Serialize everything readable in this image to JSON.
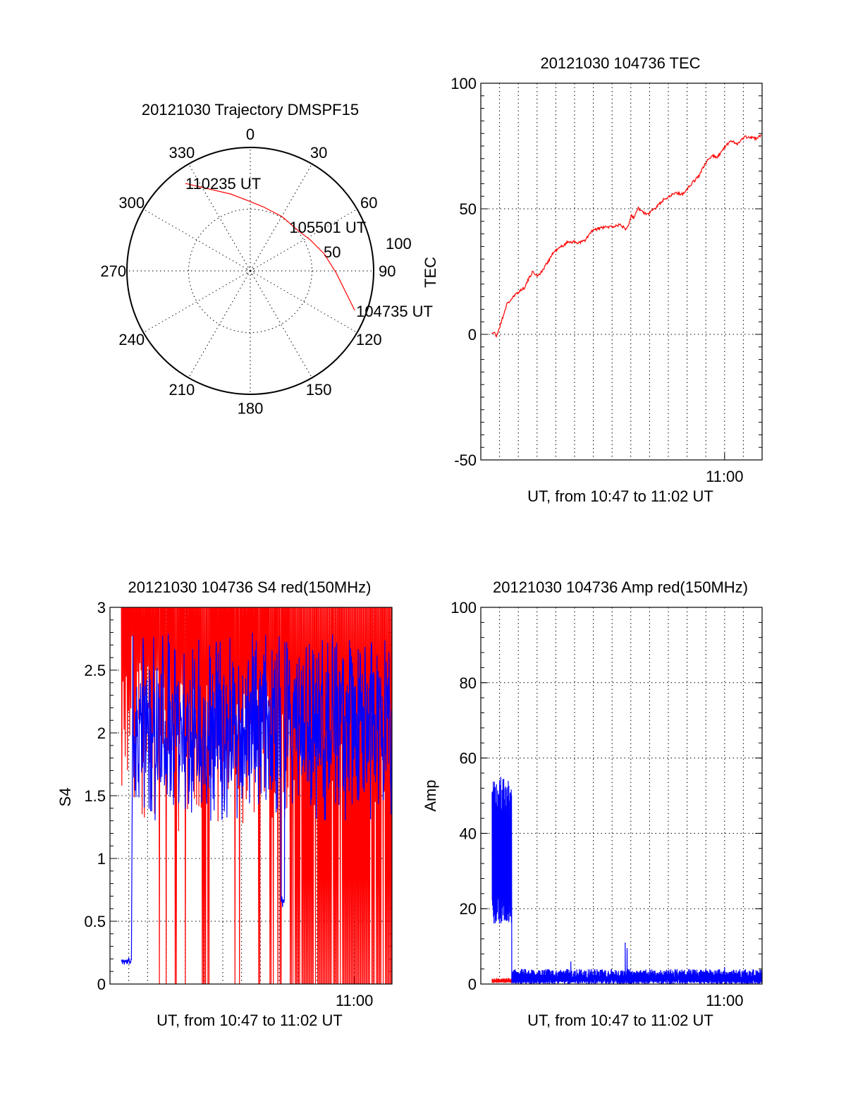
{
  "colors": {
    "red": "#ff0000",
    "blue": "#0000ff",
    "axis": "#000000"
  },
  "chart_data": [
    {
      "id": "trajectory",
      "type": "polar",
      "title": "20121030 Trajectory DMSPF15",
      "angle_labels": [
        "0",
        "30",
        "60",
        "90",
        "120",
        "150",
        "180",
        "210",
        "240",
        "270",
        "300",
        "330"
      ],
      "angles_deg": [
        0,
        30,
        60,
        90,
        120,
        150,
        180,
        210,
        240,
        270,
        300,
        330
      ],
      "ring_labels": [
        "50",
        "100"
      ],
      "rings": [
        50,
        100
      ],
      "rmax": 100,
      "series": [
        {
          "name": "trajectory",
          "color": "#ff0000",
          "azimuth_deg": [
            110.7,
            91.4,
            77.1,
            62.6,
            50.0,
            30.3,
            11.2,
            358.8,
            345.6,
            333.4,
            323.4
          ],
          "radius": [
            90.5,
            69.7,
            61.5,
            54.7,
            50.7,
            51.0,
            53.0,
            56.6,
            64.3,
            74.1,
            88.2
          ]
        }
      ],
      "annotations": [
        {
          "text": "104735 UT",
          "azimuth_deg": 110.7,
          "radius": 90.5
        },
        {
          "text": "105501 UT",
          "azimuth_deg": 60,
          "radius": 55
        },
        {
          "text": "110235 UT",
          "azimuth_deg": 323.4,
          "radius": 88.2
        }
      ]
    },
    {
      "id": "tec",
      "type": "line",
      "title": "20121030 104736 TEC",
      "xlabel": "UT, from 10:47 to 11:02 UT",
      "ylabel": "TEC",
      "x_unit": "minutes after 10:00 UT",
      "xlim": [
        47,
        62
      ],
      "ylim": [
        -50,
        100
      ],
      "yticks": [
        -50,
        0,
        50,
        100
      ],
      "ytick_labels": [
        "-50",
        "0",
        "50",
        "100"
      ],
      "yminor_step": 5,
      "xticks": [
        60
      ],
      "xtick_labels": [
        "11:00"
      ],
      "xgrid_step": 1,
      "grid": true,
      "series": [
        {
          "name": "TEC",
          "color": "#ff0000",
          "x": [
            47.58,
            47.7,
            47.83,
            48.02,
            48.39,
            48.95,
            49.32,
            49.75,
            50.0,
            50.25,
            50.87,
            51.68,
            52.17,
            52.55,
            52.92,
            53.42,
            54.03,
            54.41,
            54.72,
            54.9,
            55.03,
            55.15,
            55.37,
            55.87,
            56.27,
            56.83,
            57.38,
            57.76,
            58.13,
            58.63,
            59.06,
            59.37,
            59.56,
            60.05,
            60.36,
            60.67,
            61.1,
            61.73,
            61.95
          ],
          "y": [
            0.5,
            0.8,
            -0.9,
            3.3,
            12,
            16.6,
            18.6,
            24.9,
            23.4,
            24.9,
            32.6,
            37,
            36.5,
            37.3,
            41.1,
            42.5,
            42.9,
            43.6,
            42.2,
            43.9,
            48.1,
            45.9,
            50.3,
            47.5,
            50.3,
            54.1,
            56.4,
            55.8,
            59.1,
            63.2,
            69.1,
            71.3,
            70.2,
            74.9,
            77.1,
            76,
            78.7,
            77.9,
            79.6
          ]
        }
      ]
    },
    {
      "id": "s4",
      "type": "line",
      "title": "20121030 104736 S4 red(150MHz)",
      "xlabel": "UT, from 10:47 to 11:02 UT",
      "ylabel": "S4",
      "x_unit": "minutes after 10:00 UT",
      "xlim": [
        47,
        62
      ],
      "ylim": [
        0,
        3
      ],
      "yticks": [
        0,
        0.5,
        1,
        1.5,
        2,
        2.5,
        3
      ],
      "ytick_labels": [
        "0",
        "0.5",
        "1",
        "1.5",
        "2",
        "2.5",
        "3"
      ],
      "yminor_step": 0.1,
      "xticks": [
        60
      ],
      "xtick_labels": [
        "11:00"
      ],
      "xgrid_step": 1,
      "grid": true,
      "series": [
        {
          "name": "red",
          "color": "#ff0000",
          "step": 0.03,
          "seed": 7,
          "segments": [
            {
              "x0": 47.6,
              "x1": 48.2,
              "low_min": 1.5,
              "low_max": 2.8,
              "zero_prob": 0
            },
            {
              "x0": 48.2,
              "x1": 49.6,
              "low_min": 1.3,
              "low_max": 2.6,
              "zero_prob": 0
            },
            {
              "x0": 49.6,
              "x1": 56.7,
              "low_min": 1.2,
              "low_max": 2.4,
              "zero_prob": 0.22
            },
            {
              "x0": 56.7,
              "x1": 62.0,
              "low_min": 1.4,
              "low_max": 2.2,
              "zero_prob": 0.85
            }
          ]
        },
        {
          "name": "blue",
          "color": "#0000ff",
          "step": 0.02,
          "seed": 11,
          "segments": [
            {
              "x0": 47.6,
              "x1": 48.15,
              "mean": 0.18,
              "spread": 0.04
            },
            {
              "x0": 48.2,
              "x1": 56.1,
              "mean": 2.05,
              "spread": 0.75
            },
            {
              "x0": 56.1,
              "x1": 56.3,
              "mean": 0.65,
              "spread": 0.05
            },
            {
              "x0": 56.3,
              "x1": 62.0,
              "mean": 2.05,
              "spread": 0.75
            }
          ]
        }
      ]
    },
    {
      "id": "amp",
      "type": "line",
      "title": "20121030 104736 Amp red(150MHz)",
      "xlabel": "UT, from 10:47 to 11:02 UT",
      "ylabel": "Amp",
      "x_unit": "minutes after 10:00 UT",
      "xlim": [
        47,
        62
      ],
      "ylim": [
        0,
        100
      ],
      "yticks": [
        0,
        20,
        40,
        60,
        80,
        100
      ],
      "ytick_labels": [
        "0",
        "20",
        "40",
        "60",
        "80",
        "100"
      ],
      "yminor_step": 4,
      "xticks": [
        60
      ],
      "xtick_labels": [
        "11:00"
      ],
      "xgrid_step": 1,
      "grid": true,
      "series": [
        {
          "name": "red",
          "color": "#ff0000",
          "step": 0.01,
          "seed": 3,
          "segments": [
            {
              "x0": 47.6,
              "x1": 48.65,
              "low_min": 0.3,
              "low_max": 0.6,
              "high_min": 0.8,
              "high_max": 1.6
            }
          ]
        },
        {
          "name": "blue",
          "color": "#0000ff",
          "step": 0.008,
          "seed": 5,
          "segments": [
            {
              "x0": 47.6,
              "x1": 48.65,
              "low_min": 16,
              "low_max": 24,
              "high_min": 42,
              "high_max": 55
            },
            {
              "x0": 48.65,
              "x1": 62.0,
              "low_min": 0,
              "low_max": 1.2,
              "high_min": 1.5,
              "high_max": 4
            }
          ],
          "spikes": [
            {
              "x": 51.8,
              "y": 6
            },
            {
              "x": 54.7,
              "y": 11
            },
            {
              "x": 54.8,
              "y": 9.5
            },
            {
              "x": 60.0,
              "y": 4.5
            }
          ]
        }
      ]
    }
  ]
}
